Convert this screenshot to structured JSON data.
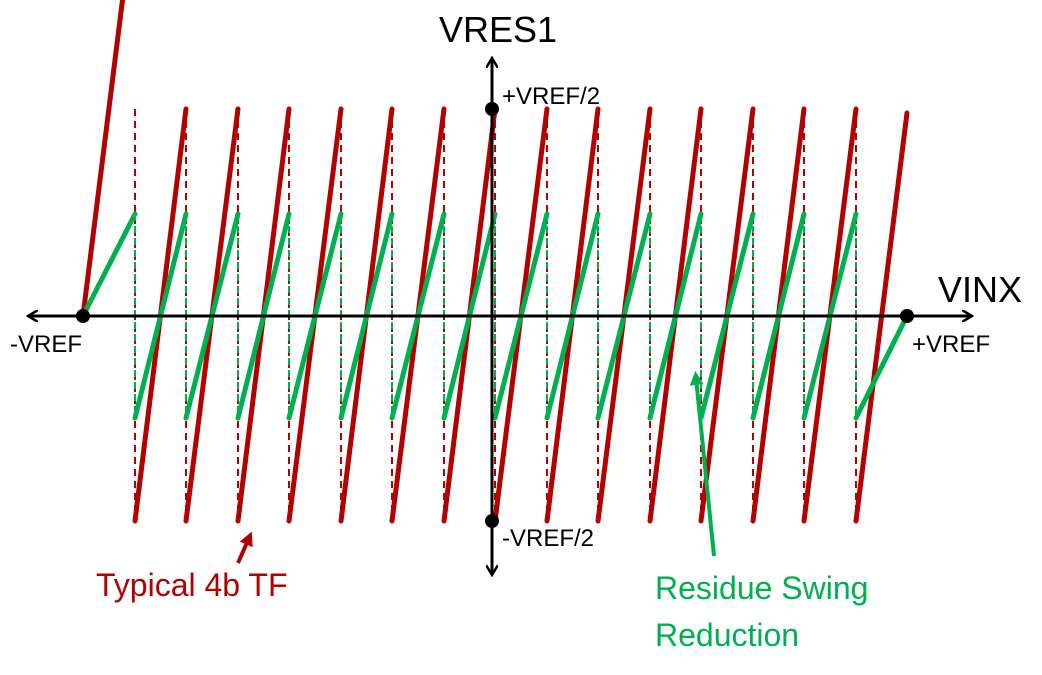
{
  "labels": {
    "y_axis": "VRES1",
    "x_axis": "VINX",
    "pos_half_ref": "+VREF/2",
    "neg_half_ref": "-VREF/2",
    "neg_ref": "-VREF",
    "pos_ref": "+VREF"
  },
  "annotations": {
    "red_caption": "Typical 4b TF",
    "green_caption_line1": "Residue Swing",
    "green_caption_line2": "Reduction"
  },
  "colors": {
    "red": "#b30000",
    "green": "#00b050",
    "axis": "#000000"
  },
  "diagram": {
    "segments": 16,
    "red_curve": "sawtooth transfer function spanning -VREF/2 to +VREF/2",
    "green_curve": "reduced-swing sawtooth"
  }
}
